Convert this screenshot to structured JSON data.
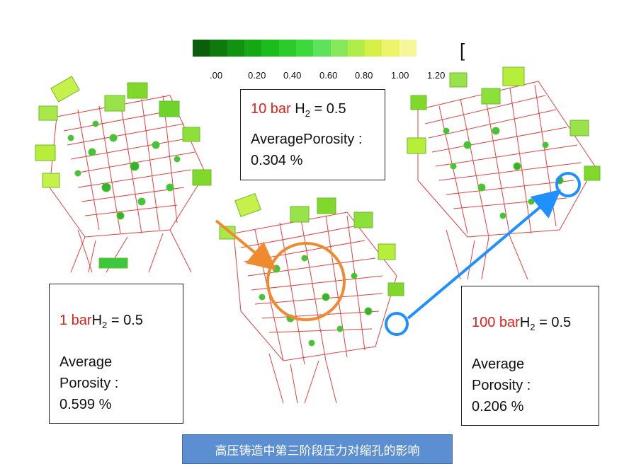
{
  "legend": {
    "ticks": [
      ".00",
      "0.20",
      "0.40",
      "0.60",
      "0.80",
      "1.00",
      "1.20"
    ],
    "colors": [
      "#0b5e0b",
      "#0e7a0e",
      "#119211",
      "#15a815",
      "#1cbc1c",
      "#2acb2a",
      "#3cd83c",
      "#5ee25e",
      "#86e85a",
      "#b0ec4a",
      "#d6f04a",
      "#eef46a",
      "#f6f79a"
    ],
    "bracket": "["
  },
  "boxes": {
    "b10": {
      "pressure": "10 bar",
      "gas": "H",
      "sub": "2",
      "ratio": " = 0.5",
      "label": "AveragePorosity :",
      "value": "0.304 %"
    },
    "b1": {
      "pressure": "1 bar",
      "gas": "H",
      "sub": "2",
      "ratio": " = 0.5",
      "label1": "Average",
      "label2": "Porosity :",
      "value": "0.599 %"
    },
    "b100": {
      "pressure": "100 bar",
      "gas": "H",
      "sub": "2",
      "ratio": " = 0.5",
      "label1": "Average",
      "label2": "Porosity :",
      "value": "0.206 %"
    }
  },
  "caption": "高压铸造中第三阶段压力对缩孔的影响",
  "colors": {
    "mesh": "#e0201b",
    "porosity_green": "#3cc83c",
    "porosity_light": "#b7ee3a",
    "highlight_orange": "#f08a30",
    "highlight_blue": "#1e90ff"
  }
}
